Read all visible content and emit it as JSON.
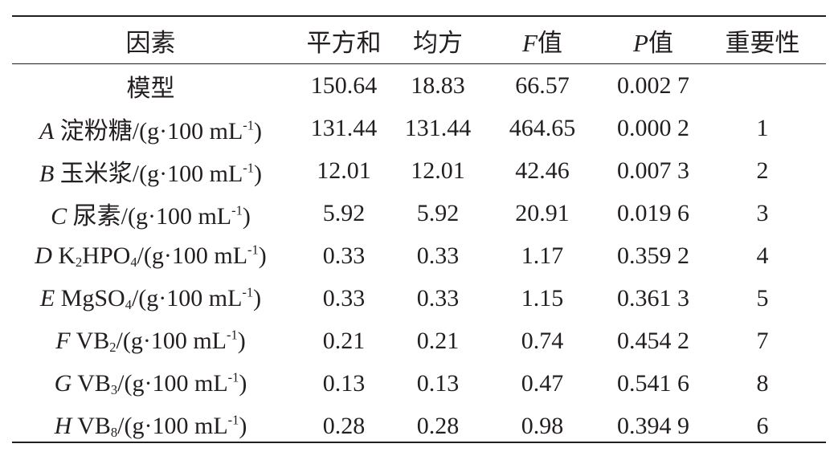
{
  "table": {
    "headers": [
      {
        "var": "",
        "text": "因素"
      },
      {
        "var": "",
        "text": "平方和"
      },
      {
        "var": "",
        "text": "均方"
      },
      {
        "var": "F",
        "text": "值"
      },
      {
        "var": "P",
        "text": "值"
      },
      {
        "var": "",
        "text": "重要性"
      }
    ],
    "unit": "/(g·100 mL",
    "unit_exp": "-1",
    "unit_close": ")",
    "rows": [
      {
        "var": "",
        "name": "模型",
        "name_sub": "",
        "name_post": "",
        "name_sub2": "",
        "has_unit": false,
        "ss": "150.64",
        "ms": "18.83",
        "f": "66.57",
        "p": "0.002 7",
        "rank": ""
      },
      {
        "var": "A",
        "name": "淀粉糖",
        "name_sub": "",
        "name_post": "",
        "name_sub2": "",
        "has_unit": true,
        "ss": "131.44",
        "ms": "131.44",
        "f": "464.65",
        "p": "0.000 2",
        "rank": "1"
      },
      {
        "var": "B",
        "name": "玉米浆",
        "name_sub": "",
        "name_post": "",
        "name_sub2": "",
        "has_unit": true,
        "ss": "12.01",
        "ms": "12.01",
        "f": "42.46",
        "p": "0.007 3",
        "rank": "2"
      },
      {
        "var": "C",
        "name": "尿素",
        "name_sub": "",
        "name_post": "",
        "name_sub2": "",
        "has_unit": true,
        "ss": "5.92",
        "ms": "5.92",
        "f": "20.91",
        "p": "0.019 6",
        "rank": "3"
      },
      {
        "var": "D",
        "name": "K",
        "name_sub": "2",
        "name_post": "HPO",
        "name_sub2": "4",
        "has_unit": true,
        "ss": "0.33",
        "ms": "0.33",
        "f": "1.17",
        "p": "0.359 2",
        "rank": "4"
      },
      {
        "var": "E",
        "name": "MgSO",
        "name_sub": "4",
        "name_post": "",
        "name_sub2": "",
        "has_unit": true,
        "ss": "0.33",
        "ms": "0.33",
        "f": "1.15",
        "p": "0.361 3",
        "rank": "5"
      },
      {
        "var": "F",
        "name": "VB",
        "name_sub": "2",
        "name_post": "",
        "name_sub2": "",
        "has_unit": true,
        "ss": "0.21",
        "ms": "0.21",
        "f": "0.74",
        "p": "0.454 2",
        "rank": "7"
      },
      {
        "var": "G",
        "name": "VB",
        "name_sub": "3",
        "name_post": "",
        "name_sub2": "",
        "has_unit": true,
        "ss": "0.13",
        "ms": "0.13",
        "f": "0.47",
        "p": "0.541 6",
        "rank": "8"
      },
      {
        "var": "H",
        "name": "VB",
        "name_sub": "8",
        "name_post": "",
        "name_sub2": "",
        "has_unit": true,
        "ss": "0.28",
        "ms": "0.28",
        "f": "0.98",
        "p": "0.394 9",
        "rank": "6"
      }
    ]
  }
}
